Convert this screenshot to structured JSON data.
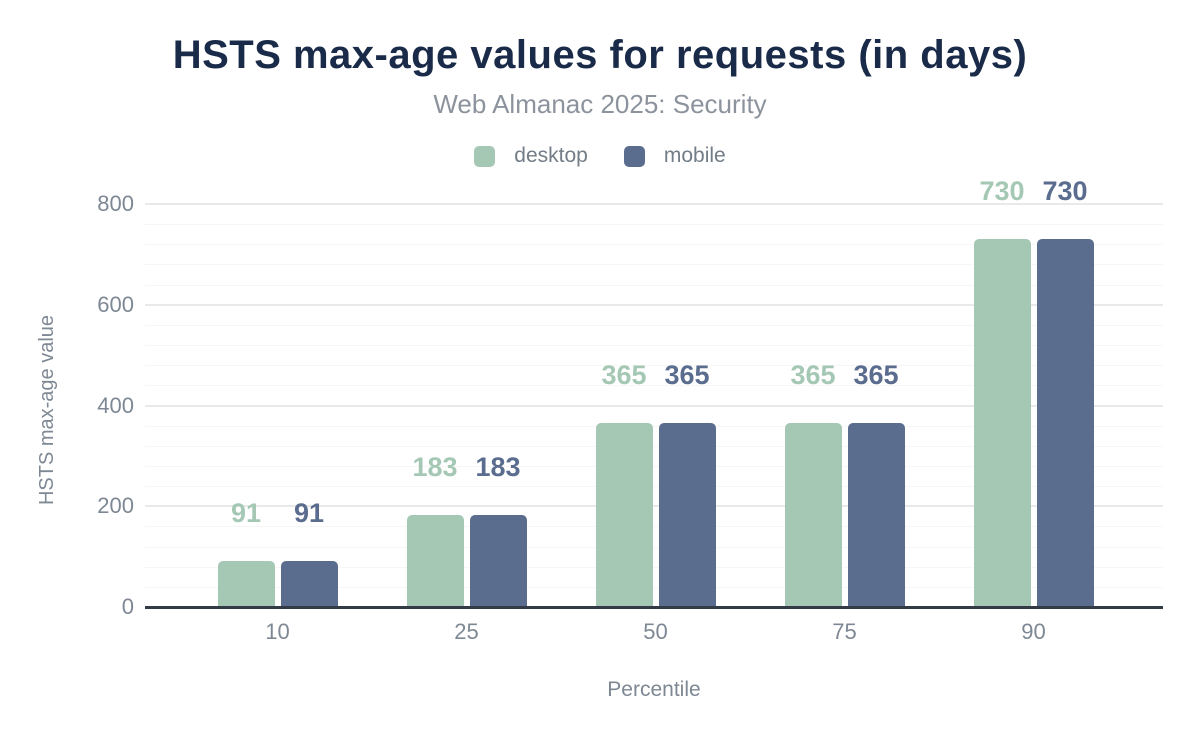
{
  "chart_data": {
    "type": "bar",
    "title": "HSTS max-age values for requests (in days)",
    "subtitle": "Web Almanac 2025: Security",
    "xlabel": "Percentile",
    "ylabel": "HSTS max-age value",
    "categories": [
      "10",
      "25",
      "50",
      "75",
      "90"
    ],
    "series": [
      {
        "name": "desktop",
        "color": "#a5c8b5",
        "values": [
          91,
          183,
          365,
          365,
          730
        ]
      },
      {
        "name": "mobile",
        "color": "#5b6d8e",
        "values": [
          91,
          183,
          365,
          365,
          730
        ]
      }
    ],
    "ylim": [
      0,
      800
    ],
    "yticks": [
      0,
      200,
      400,
      600,
      800
    ],
    "minor_tick_step": 40,
    "grid": "on",
    "legend_position": "top",
    "value_labels": true
  },
  "colors": {
    "background": "#ffffff",
    "title": "#1a2b49",
    "subtitle": "#8c939d",
    "legend_text": "#737d87",
    "axis_text": "#7e8894",
    "axis_line": "#333c46",
    "grid_major": "#e9e9e9",
    "grid_minor": "#f6f6f6",
    "desktop": "#a5c8b5",
    "mobile": "#5b6d8e"
  }
}
